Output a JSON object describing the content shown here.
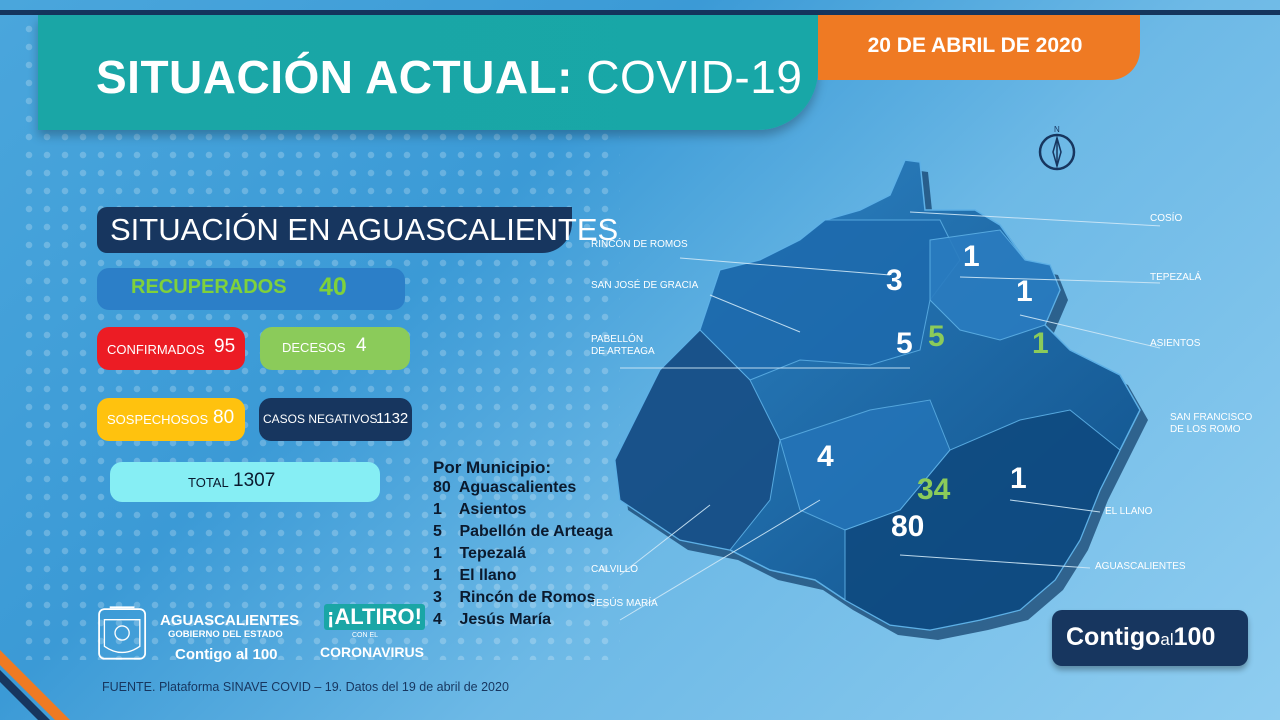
{
  "header": {
    "title_bold": "SITUACIÓN ACTUAL:",
    "title_light": "COVID-19",
    "date": "20 DE ABRIL DE 2020"
  },
  "summary": {
    "section_title": "SITUACIÓN EN AGUASCALIENTES",
    "recuperados": {
      "label": "RECUPERADOS",
      "value": "40"
    },
    "confirmados": {
      "label": "CONFIRMADOS",
      "value": "95"
    },
    "decesos": {
      "label": "DECESOS",
      "value": "4"
    },
    "sospechosos": {
      "label": "SOSPECHOSOS",
      "value": "80"
    },
    "negativos": {
      "label": "CASOS NEGATIVOS",
      "value": "1132"
    },
    "total": {
      "label": "TOTAL",
      "value": "1307"
    }
  },
  "municipios": {
    "title": "Por Municipio:",
    "items": [
      {
        "count": "80",
        "name": "Aguascalientes"
      },
      {
        "count": "1",
        "name": "Asientos"
      },
      {
        "count": "5",
        "name": "Pabellón de Arteaga"
      },
      {
        "count": "1",
        "name": "Tepezalá"
      },
      {
        "count": "1",
        "name": "El llano"
      },
      {
        "count": "3",
        "name": "Rincón de Romos"
      },
      {
        "count": "4",
        "name": "Jesús María"
      }
    ]
  },
  "map": {
    "numbers": [
      {
        "value": "1",
        "color": "#ffffff"
      },
      {
        "value": "3",
        "color": "#ffffff"
      },
      {
        "value": "1",
        "color": "#ffffff"
      },
      {
        "value": "5",
        "color": "#ffffff"
      },
      {
        "value": "5",
        "color": "#8bcb5a"
      },
      {
        "value": "1",
        "color": "#8bcb5a"
      },
      {
        "value": "4",
        "color": "#ffffff"
      },
      {
        "value": "34",
        "color": "#8bcb5a"
      },
      {
        "value": "1",
        "color": "#ffffff"
      },
      {
        "value": "80",
        "color": "#ffffff"
      }
    ],
    "labels": {
      "cosio": "COSÍO",
      "rincon": "RINCÓN DE ROMOS",
      "tepezala": "TEPEZALÁ",
      "sanjose": "SAN JOSÉ DE GRACIA",
      "asientos": "ASIENTOS",
      "pabellon1": "PABELLÓN",
      "pabellon2": "DE ARTEAGA",
      "sanfco1": "SAN FRANCISCO",
      "sanfco2": "DE LOS ROMO",
      "elllano": "EL LLANO",
      "aguascalientes": "AGUASCALIENTES",
      "calvillo": "CALVILLO",
      "jesusmaria": "JESÚS MARÍA"
    }
  },
  "footer": {
    "gov_name": "AGUASCALIENTES",
    "gov_sub": "GOBIERNO DEL ESTADO",
    "gov_contigo": "Contigo al 100",
    "altiro1": "¡ALTIRO!",
    "altiro2": "CON EL",
    "altiro3": "CORONAVIRUS",
    "fuente": "FUENTE. Plataforma SINAVE COVID – 19. Datos del 19 de abril de 2020",
    "badge_main": "Contigo",
    "badge_small": "al",
    "badge_num": "100"
  },
  "colors": {
    "teal": "#18a7a7",
    "orange": "#ef7a23",
    "navy": "#17365f",
    "red": "#ec1c24",
    "green": "#8bcb5a",
    "yellow": "#ffc20e",
    "cyan": "#86eef4"
  }
}
